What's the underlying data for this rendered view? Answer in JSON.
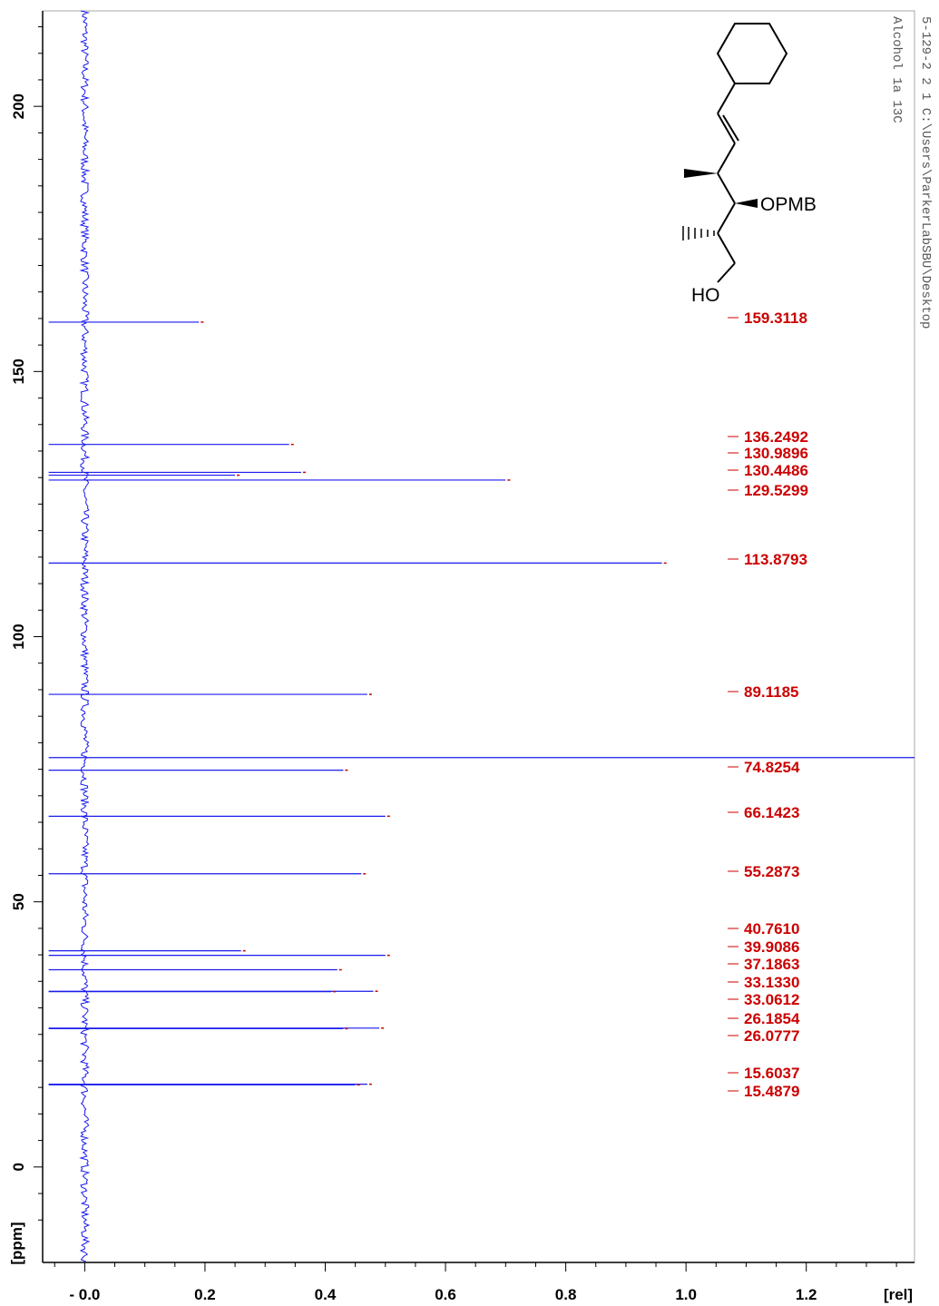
{
  "header": {
    "line1": "5-129-2  2  1  C:\\Users\\ParkerLabSBU\\Desktop",
    "line2": "Alcohol 1a 13C"
  },
  "molecule": {
    "substituent_label": "OPMB",
    "hydroxyl_label": "HO"
  },
  "colors": {
    "spectrum": "#1a1aee",
    "peak_label": "#cc0000",
    "axis": "#000000"
  },
  "chart_data": {
    "type": "line",
    "orientation": "rotated: chemical shift on vertical axis, intensity on horizontal axis",
    "xlabel": "[rel]",
    "ylabel": "[ppm]",
    "xlim": [
      -0.07,
      1.38
    ],
    "ylim": [
      -18,
      218
    ],
    "x_ticks": [
      -0.0,
      0.2,
      0.4,
      0.6,
      0.8,
      1.0,
      1.2
    ],
    "x_tick_labels": [
      "- 0.0",
      "0.2",
      "0.4",
      "0.6",
      "0.8",
      "1.0",
      "1.2"
    ],
    "y_ticks": [
      200,
      150,
      100,
      50,
      0
    ],
    "y_tick_labels": [
      "200",
      "150",
      "100",
      "50",
      "0"
    ],
    "peaks": [
      {
        "ppm": 159.3118,
        "rel": 0.19
      },
      {
        "ppm": 136.2492,
        "rel": 0.34
      },
      {
        "ppm": 130.9896,
        "rel": 0.36
      },
      {
        "ppm": 130.4486,
        "rel": 0.25
      },
      {
        "ppm": 129.5299,
        "rel": 0.7
      },
      {
        "ppm": 113.8793,
        "rel": 0.96
      },
      {
        "ppm": 89.1185,
        "rel": 0.47
      },
      {
        "ppm": 77.2,
        "rel": 1.4
      },
      {
        "ppm": 74.8254,
        "rel": 0.43
      },
      {
        "ppm": 66.1423,
        "rel": 0.5
      },
      {
        "ppm": 55.2873,
        "rel": 0.46
      },
      {
        "ppm": 40.761,
        "rel": 0.26
      },
      {
        "ppm": 39.9086,
        "rel": 0.5
      },
      {
        "ppm": 37.1863,
        "rel": 0.42
      },
      {
        "ppm": 33.133,
        "rel": 0.48
      },
      {
        "ppm": 33.0612,
        "rel": 0.41
      },
      {
        "ppm": 26.1854,
        "rel": 0.49
      },
      {
        "ppm": 26.0777,
        "rel": 0.43
      },
      {
        "ppm": 15.6037,
        "rel": 0.47
      },
      {
        "ppm": 15.4879,
        "rel": 0.45
      }
    ],
    "peak_labels": [
      "159.3118",
      "136.2492",
      "130.9896",
      "130.4486",
      "129.5299",
      "113.8793",
      "89.1185",
      "74.8254",
      "66.1423",
      "55.2873",
      "40.7610",
      "39.9086",
      "37.1863",
      "33.1330",
      "33.0612",
      "26.1854",
      "26.0777",
      "15.6037",
      "15.4879"
    ]
  }
}
